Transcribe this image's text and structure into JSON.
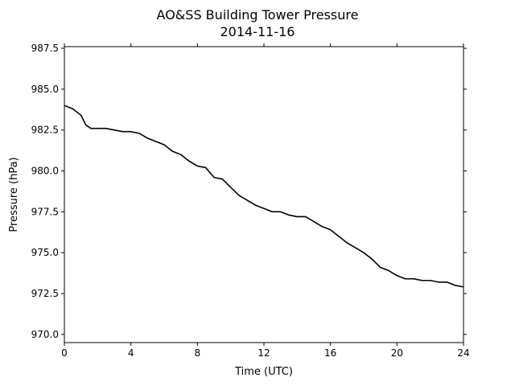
{
  "chart_data": {
    "type": "line",
    "title": "AO&SS Building Tower Pressure",
    "subtitle": "2014-11-16",
    "xlabel": "Time (UTC)",
    "ylabel": "Pressure (hPa)",
    "xlim": [
      0,
      24
    ],
    "ylim": [
      969.5,
      987.6
    ],
    "xticks": [
      0,
      4,
      8,
      12,
      16,
      20,
      24
    ],
    "xtick_labels": [
      "0",
      "4",
      "8",
      "12",
      "16",
      "20",
      "24"
    ],
    "yticks": [
      970.0,
      972.5,
      975.0,
      977.5,
      980.0,
      982.5,
      985.0,
      987.5
    ],
    "ytick_labels": [
      "970.0",
      "972.5",
      "975.0",
      "977.5",
      "980.0",
      "982.5",
      "985.0",
      "987.5"
    ],
    "grid": false,
    "line_color": "#000000",
    "series": [
      {
        "x": [
          0,
          0.5,
          1.0,
          1.3,
          1.6,
          2.0,
          2.5,
          3.0,
          3.5,
          4.0,
          4.5,
          5.0,
          5.5,
          6.0,
          6.5,
          7.0,
          7.5,
          8.0,
          8.5,
          9.0,
          9.5,
          10.0,
          10.5,
          11.0,
          11.5,
          12.0,
          12.5,
          13.0,
          13.5,
          14.0,
          14.5,
          15.0,
          15.5,
          16.0,
          16.5,
          17.0,
          17.5,
          18.0,
          18.5,
          19.0,
          19.5,
          20.0,
          20.5,
          21.0,
          21.5,
          22.0,
          22.5,
          23.0,
          23.5,
          24.0
        ],
        "values": [
          984.0,
          983.8,
          983.4,
          982.8,
          982.6,
          982.6,
          982.6,
          982.5,
          982.4,
          982.4,
          982.3,
          982.0,
          981.8,
          981.6,
          981.2,
          981.0,
          980.6,
          980.3,
          980.2,
          979.6,
          979.5,
          979.0,
          978.5,
          978.2,
          977.9,
          977.7,
          977.5,
          977.5,
          977.3,
          977.2,
          977.2,
          976.9,
          976.6,
          976.4,
          976.0,
          975.6,
          975.3,
          975.0,
          974.6,
          974.1,
          973.9,
          973.6,
          973.4,
          973.4,
          973.3,
          973.3,
          973.2,
          973.2,
          973.0,
          972.9
        ]
      }
    ]
  }
}
